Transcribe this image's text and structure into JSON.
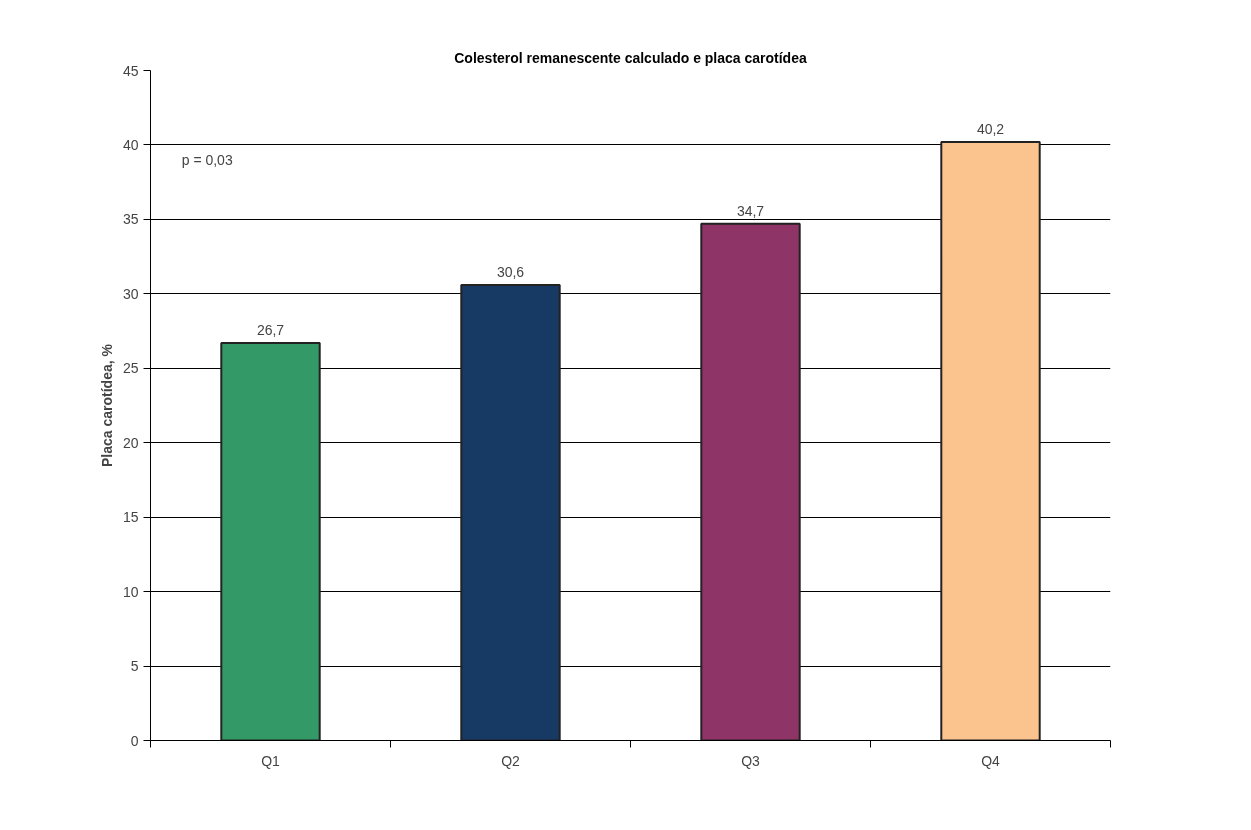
{
  "chart_data": {
    "type": "bar",
    "title": "Colesterol remanescente calculado e placa carotídea",
    "ylabel": "Placa carotídea, %",
    "categories": [
      "Q1",
      "Q2",
      "Q3",
      "Q4"
    ],
    "values": [
      26.7,
      30.6,
      34.7,
      40.2
    ],
    "colors": [
      "#339966",
      "#173a64",
      "#8e3467",
      "#fbc38e"
    ],
    "value_labels": [
      "26,7",
      "30,6",
      "34,7",
      "40,2"
    ],
    "ylim": [
      0,
      45
    ],
    "yticks": [
      0,
      5,
      10,
      15,
      20,
      25,
      30,
      35,
      40,
      45
    ],
    "grid": "y",
    "annotations": [
      "p = 0,03"
    ]
  }
}
